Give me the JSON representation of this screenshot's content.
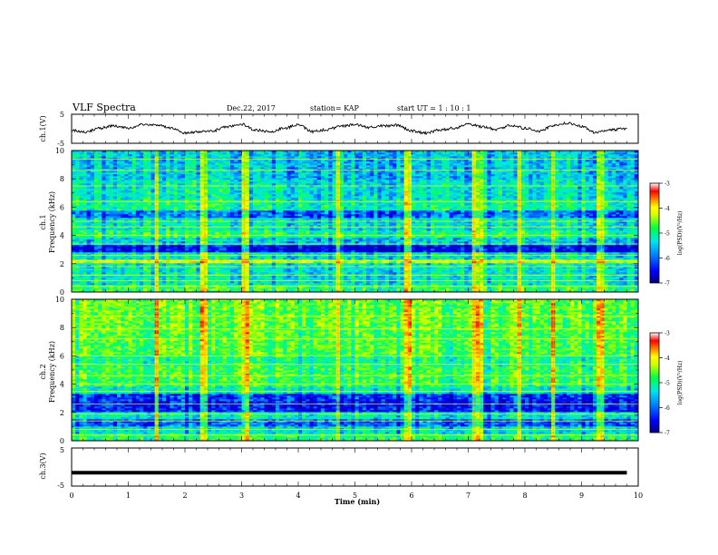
{
  "header": {
    "title": "VLF Spectra",
    "date": "Dec.22, 2017",
    "station": "station= KAP",
    "start": "start  UT =   1 : 10 : 1"
  },
  "chart_data": [
    {
      "type": "line",
      "panel": "ch1",
      "ylabel": "ch.1(V)",
      "xlim": [
        0,
        10
      ],
      "ylim": [
        -5,
        5
      ],
      "yticks": [
        "5",
        "-5"
      ],
      "description_level": "oscillating waveform, amplitude about 1 V around 0",
      "x": [
        0,
        0.25,
        0.5,
        0.75,
        1.0,
        1.25,
        1.5,
        1.75,
        2.0,
        2.25,
        2.5,
        2.75,
        3.0,
        3.25,
        3.5,
        3.75,
        4.0,
        4.25,
        4.5,
        4.75,
        5.0,
        5.25,
        5.5,
        5.75,
        6.0,
        6.25,
        6.5,
        6.75,
        7.0,
        7.25,
        7.5,
        7.75,
        8.0,
        8.25,
        8.5,
        8.75,
        9.0,
        9.25,
        9.5,
        9.8
      ],
      "y": [
        -0.5,
        -1.2,
        0.3,
        1.0,
        0.2,
        1.6,
        1.2,
        0.4,
        -1.5,
        -1.0,
        -0.6,
        0.8,
        1.6,
        -0.4,
        -1.1,
        0.2,
        1.4,
        -1.0,
        -0.3,
        0.8,
        1.5,
        0.5,
        1.0,
        1.3,
        -0.7,
        -1.5,
        -0.4,
        0.2,
        1.7,
        0.6,
        -0.2,
        1.2,
        0.2,
        -0.8,
        1.0,
        1.9,
        0.8,
        -1.3,
        -0.4,
        0.1
      ]
    },
    {
      "type": "heatmap",
      "panel": "ch1-spectrogram",
      "ylabel_top": "ch.1",
      "ylabel": "Frequency (kHz)",
      "xlim": [
        0,
        10
      ],
      "ylim": [
        0,
        10
      ],
      "yticks": [
        "0",
        "2",
        "4",
        "6",
        "8",
        "10"
      ],
      "colorbar": {
        "label": "log(PSD)(V²/Hz)",
        "ticks": [
          "-3",
          "-4",
          "-5",
          "-6",
          "-7"
        ],
        "range": [
          -7,
          -3
        ]
      },
      "bands": [
        {
          "from": 0.0,
          "to": 0.5,
          "level": -5.2
        },
        {
          "from": 0.5,
          "to": 1.3,
          "level": -5.6
        },
        {
          "from": 1.3,
          "to": 2.0,
          "level": -5.6
        },
        {
          "from": 2.0,
          "to": 2.3,
          "level": -4.6
        },
        {
          "from": 2.3,
          "to": 2.8,
          "level": -5.6
        },
        {
          "from": 2.8,
          "to": 3.3,
          "level": -6.7
        },
        {
          "from": 3.3,
          "to": 3.8,
          "level": -5.8
        },
        {
          "from": 3.8,
          "to": 4.4,
          "level": -5.3
        },
        {
          "from": 4.4,
          "to": 5.2,
          "level": -5.6
        },
        {
          "from": 5.2,
          "to": 5.8,
          "level": -6.2
        },
        {
          "from": 5.8,
          "to": 6.5,
          "level": -5.4
        },
        {
          "from": 6.5,
          "to": 8.0,
          "level": -5.6
        },
        {
          "from": 8.0,
          "to": 10.0,
          "level": -5.8
        }
      ],
      "lines_kHz": [
        0.4,
        0.8,
        1.2,
        1.8,
        2.2,
        2.6,
        3.4,
        4.0,
        4.6,
        5.0,
        6.4,
        7.5,
        8.6,
        9.4
      ],
      "bursts_min": [
        1.5,
        2.35,
        3.05,
        4.7,
        5.95,
        7.1,
        7.2,
        7.9,
        8.5,
        9.35
      ]
    },
    {
      "type": "heatmap",
      "panel": "ch2-spectrogram",
      "ylabel_top": "ch.2",
      "ylabel": "Frequency (kHz)",
      "xlim": [
        0,
        10
      ],
      "ylim": [
        0,
        10
      ],
      "yticks": [
        "0",
        "2",
        "4",
        "6",
        "8",
        "10"
      ],
      "colorbar": {
        "label": "log(PSD)(V²/Hz)",
        "ticks": [
          "-3",
          "-4",
          "-5",
          "-6",
          "-7"
        ],
        "range": [
          -7,
          -3
        ]
      },
      "bands": [
        {
          "from": 0.0,
          "to": 0.5,
          "level": -5.3
        },
        {
          "from": 0.5,
          "to": 1.0,
          "level": -5.7
        },
        {
          "from": 1.0,
          "to": 1.6,
          "level": -6.3
        },
        {
          "from": 1.6,
          "to": 2.0,
          "level": -5.6
        },
        {
          "from": 2.0,
          "to": 2.8,
          "level": -6.6
        },
        {
          "from": 2.8,
          "to": 3.3,
          "level": -6.5
        },
        {
          "from": 3.3,
          "to": 3.8,
          "level": -5.6
        },
        {
          "from": 3.8,
          "to": 4.4,
          "level": -5.2
        },
        {
          "from": 4.4,
          "to": 5.2,
          "level": -5.2
        },
        {
          "from": 5.2,
          "to": 6.0,
          "level": -5.4
        },
        {
          "from": 6.0,
          "to": 8.0,
          "level": -5.1
        },
        {
          "from": 8.0,
          "to": 10.0,
          "level": -5.0
        }
      ],
      "lines_kHz": [
        0.4,
        0.8,
        1.4,
        1.9,
        2.6,
        3.5,
        4.0,
        4.6,
        5.4,
        6.0,
        7.2,
        7.9,
        8.8
      ],
      "bursts_min": [
        1.5,
        2.35,
        3.05,
        4.7,
        5.95,
        7.1,
        7.2,
        7.9,
        8.5,
        9.35
      ]
    },
    {
      "type": "line",
      "panel": "ch3",
      "ylabel": "ch.3(V)",
      "xlabel": "Time (min)",
      "xlim": [
        0,
        10
      ],
      "ylim": [
        -5,
        5
      ],
      "yticks": [
        "5",
        "-5"
      ],
      "xticks": [
        "0",
        "1",
        "2",
        "3",
        "4",
        "5",
        "6",
        "7",
        "8",
        "9",
        "10"
      ],
      "x": [
        0,
        9.8
      ],
      "y": [
        -1.5,
        -1.5
      ]
    }
  ],
  "colors": {
    "line": "#000000",
    "colormap": [
      "#0000b4",
      "#0000ff",
      "#0088ff",
      "#00e6e6",
      "#00ff66",
      "#9cff00",
      "#ffff00",
      "#ff9000",
      "#ff0000",
      "#ffffff"
    ]
  }
}
